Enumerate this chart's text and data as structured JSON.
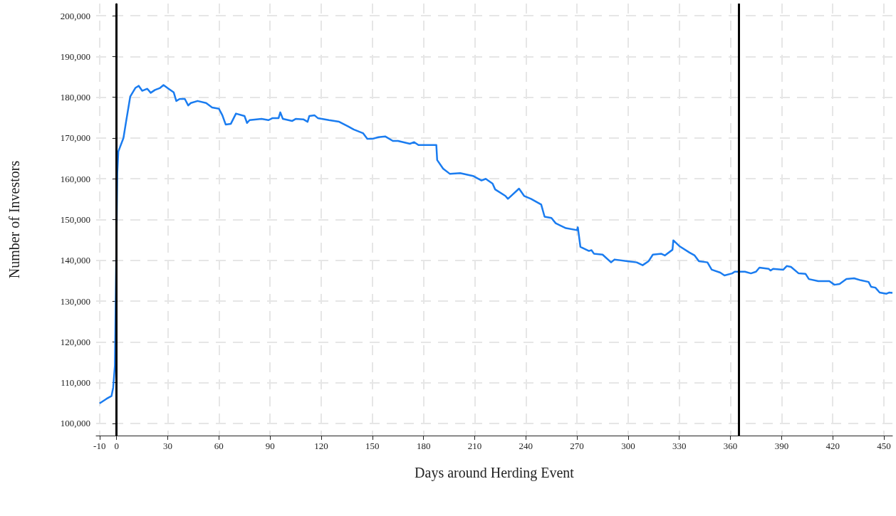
{
  "chart_data": {
    "type": "line",
    "xlabel": "Days around Herding Event",
    "ylabel": "Number of Investors",
    "xlim": [
      -12,
      455
    ],
    "xticks": [
      -10,
      0,
      30,
      60,
      90,
      120,
      150,
      180,
      210,
      240,
      270,
      300,
      330,
      360,
      390,
      420,
      450
    ],
    "ylim": [
      97000,
      203000
    ],
    "yticks": [
      {
        "value": 100000,
        "label": "100,000"
      },
      {
        "value": 110000,
        "label": "110,000"
      },
      {
        "value": 120000,
        "label": "120,000"
      },
      {
        "value": 130000,
        "label": "130,000"
      },
      {
        "value": 140000,
        "label": "140,000"
      },
      {
        "value": 150000,
        "label": "150,000"
      },
      {
        "value": 160000,
        "label": "160,000"
      },
      {
        "value": 170000,
        "label": "170,000"
      },
      {
        "value": 180000,
        "label": "180,000"
      },
      {
        "value": 190000,
        "label": "190,000"
      },
      {
        "value": 200000,
        "label": "200,000"
      }
    ],
    "grid": true,
    "marker": "none",
    "line_style": "solid",
    "ref_lines": [
      {
        "axis": "x",
        "value": 0,
        "color": "#000000"
      },
      {
        "axis": "x",
        "value": 365,
        "color": "#000000"
      }
    ],
    "series": [
      {
        "color": "#1a7cf0",
        "x": [
          -10,
          -6,
          -3,
          -2,
          -1,
          0.4,
          1,
          4,
          5.5,
          8,
          11,
          13,
          15,
          18,
          20,
          22.5,
          25.5,
          27.5,
          30.5,
          33.5,
          35,
          37,
          40,
          42,
          43.5,
          47.5,
          52.5,
          56,
          60,
          62,
          64,
          67,
          70,
          75,
          76.5,
          78,
          85,
          89,
          91.5,
          95,
          96,
          97.5,
          103,
          105,
          109.5,
          112,
          113,
          116,
          118,
          124.5,
          130.5,
          136,
          139,
          144.5,
          147,
          150,
          153.5,
          157.5,
          162,
          165,
          172,
          174.5,
          177,
          180,
          187.5,
          188,
          191.5,
          195.5,
          201.5,
          209,
          214,
          216.5,
          220.5,
          222,
          228,
          229.5,
          236,
          239,
          243,
          249,
          251,
          255,
          257.5,
          260,
          263.5,
          270,
          270.5,
          272,
          277,
          278.5,
          280,
          285,
          290,
          292,
          299.5,
          305,
          308.5,
          312,
          314.5,
          319.5,
          321.5,
          326,
          326.5,
          330,
          336,
          339,
          341.5,
          346.5,
          349,
          354,
          356.5,
          361,
          362.5,
          368.5,
          372,
          375,
          377,
          382.5,
          383.5,
          385,
          391,
          393,
          395.5,
          400,
          404,
          406,
          411.5,
          418,
          421,
          424,
          428,
          432.5,
          436.5,
          441,
          442.5,
          445,
          447.5,
          451.5,
          453,
          455
        ],
        "values": [
          104900,
          106000,
          106700,
          108800,
          114200,
          161400,
          166700,
          170000,
          173900,
          180200,
          182300,
          182800,
          181600,
          182100,
          181100,
          181800,
          182300,
          183000,
          182100,
          181200,
          179100,
          179600,
          179600,
          178000,
          178600,
          179100,
          178600,
          177500,
          177200,
          175600,
          173300,
          173500,
          176000,
          175400,
          173700,
          174400,
          174700,
          174400,
          174900,
          174900,
          176300,
          174700,
          174200,
          174700,
          174600,
          174000,
          175400,
          175600,
          174900,
          174400,
          174000,
          172800,
          172100,
          171200,
          169800,
          169800,
          170200,
          170400,
          169300,
          169300,
          168600,
          169000,
          168300,
          168300,
          168300,
          164600,
          162500,
          161200,
          161400,
          160700,
          159600,
          160000,
          158800,
          157400,
          155800,
          155100,
          157600,
          155800,
          155100,
          153700,
          150700,
          150400,
          149100,
          148600,
          147900,
          147400,
          148100,
          143300,
          142300,
          142500,
          141600,
          141400,
          139500,
          140200,
          139800,
          139500,
          138800,
          139800,
          141400,
          141600,
          141200,
          142600,
          144900,
          143500,
          141900,
          141200,
          139800,
          139500,
          137700,
          137000,
          136300,
          136800,
          137200,
          137200,
          136800,
          137200,
          138200,
          137900,
          137500,
          137900,
          137700,
          138600,
          138400,
          136800,
          136700,
          135400,
          134900,
          134900,
          134000,
          134200,
          135400,
          135600,
          135100,
          134700,
          133500,
          133300,
          132100,
          131800,
          132100,
          132000
        ]
      }
    ]
  }
}
